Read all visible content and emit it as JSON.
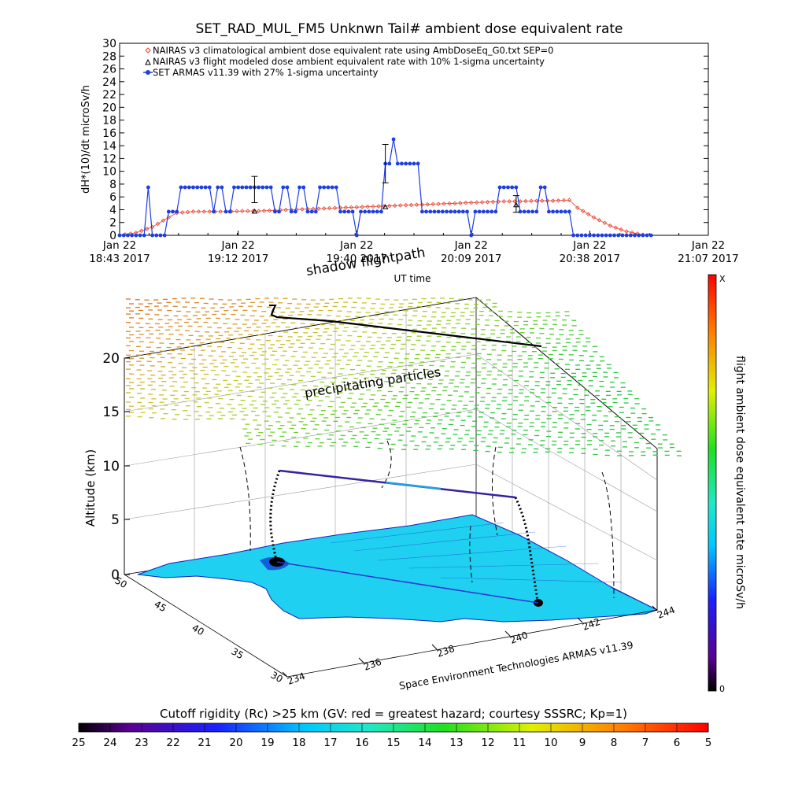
{
  "chart_data": [
    {
      "type": "line",
      "title": "SET_RAD_MUL_FM5 Unknwn Tail#  ambient dose equivalent rate",
      "xlabel": "UT time",
      "ylabel": "dH*(10)/dt microSv/h",
      "ylim": [
        0,
        30
      ],
      "yticks": [
        "0",
        "2",
        "4",
        "6",
        "8",
        "10",
        "12",
        "14",
        "16",
        "18",
        "20",
        "22",
        "24",
        "26",
        "28",
        "30"
      ],
      "xticks": [
        {
          "t": 0,
          "line1": "Jan 22",
          "line2": "18:43 2017"
        },
        {
          "t": 29,
          "line1": "Jan 22",
          "line2": "19:12 2017"
        },
        {
          "t": 58,
          "line1": "Jan 22",
          "line2": "19:40 2017"
        },
        {
          "t": 86,
          "line1": "Jan 22",
          "line2": "20:09 2017"
        },
        {
          "t": 115,
          "line1": "Jan 22",
          "line2": "20:38 2017"
        },
        {
          "t": 144,
          "line1": "Jan 22",
          "line2": "21:07 2017"
        }
      ],
      "x_unit": "minutes after 18:43 UT",
      "legend": [
        {
          "label": "NAIRAS v3 climatological ambient dose equivalent rate using AmbDoseEq_G0.txt SEP=0",
          "symbol": "diamond",
          "color": "#e8422f"
        },
        {
          "label": "NAIRAS v3 flight modeled dose ambient equivalent rate with 10% 1-sigma uncertainty",
          "symbol": "triangle",
          "color": "#000000"
        },
        {
          "label": "SET ARMAS v11.39 with 27% 1-sigma uncertainty",
          "symbol": "dot",
          "color": "#1f3fe0"
        }
      ],
      "legend_position": "top",
      "series": [
        {
          "name": "SET ARMAS v11.39 with 27% 1-sigma uncertainty",
          "color": "#1f3fe0",
          "x": [
            0,
            1,
            2,
            3,
            4,
            5,
            6,
            7,
            8,
            9,
            10,
            11,
            12,
            13,
            14,
            15,
            16,
            17,
            18,
            19,
            20,
            21,
            22,
            23,
            24,
            25,
            26,
            27,
            28,
            29,
            30,
            31,
            32,
            33,
            34,
            35,
            36,
            37,
            38,
            39,
            40,
            41,
            42,
            43,
            44,
            45,
            46,
            47,
            48,
            49,
            50,
            51,
            52,
            53,
            54,
            55,
            56,
            57,
            58,
            59,
            60,
            61,
            62,
            63,
            64,
            65,
            66,
            67,
            68,
            69,
            70,
            71,
            72,
            73,
            74,
            75,
            76,
            77,
            78,
            79,
            80,
            81,
            82,
            83,
            84,
            85,
            86,
            87,
            88,
            89,
            90,
            91,
            92,
            93,
            94,
            95,
            96,
            97,
            98,
            99,
            100,
            101,
            102,
            103,
            104,
            105,
            106,
            107,
            108,
            109,
            110,
            111,
            112,
            113,
            114,
            115,
            116,
            117,
            118,
            119,
            120,
            121,
            122,
            123,
            124,
            125,
            126,
            127,
            128,
            129,
            130
          ],
          "y": [
            0,
            0,
            0,
            0,
            0,
            0,
            0,
            7.5,
            0,
            0,
            0,
            0,
            3.7,
            3.7,
            3.7,
            7.5,
            7.5,
            7.5,
            7.5,
            7.5,
            7.5,
            7.5,
            7.5,
            3.7,
            7.5,
            7.5,
            3.7,
            3.7,
            7.5,
            7.5,
            7.5,
            7.5,
            7.5,
            7.5,
            7.5,
            7.5,
            7.5,
            7.5,
            3.7,
            3.7,
            7.5,
            7.5,
            3.7,
            3.7,
            7.5,
            7.5,
            3.7,
            3.7,
            3.7,
            7.5,
            7.5,
            7.5,
            7.5,
            7.5,
            3.7,
            3.7,
            3.7,
            3.7,
            0,
            3.7,
            3.7,
            3.7,
            3.7,
            3.7,
            3.7,
            11.2,
            11.2,
            15,
            11.2,
            11.2,
            11.2,
            11.2,
            11.2,
            11.2,
            3.7,
            3.7,
            3.7,
            3.7,
            3.7,
            3.7,
            3.7,
            3.7,
            3.7,
            3.7,
            3.7,
            3.7,
            0,
            3.7,
            3.7,
            3.7,
            3.7,
            3.7,
            3.7,
            7.5,
            7.5,
            7.5,
            7.5,
            7.5,
            3.7,
            3.7,
            3.7,
            3.7,
            3.7,
            7.5,
            7.5,
            3.7,
            3.7,
            3.7,
            3.7,
            3.7,
            3.7,
            0,
            0,
            0,
            0,
            0,
            0,
            0,
            0,
            0,
            0,
            0,
            0,
            0,
            0,
            0,
            0,
            0,
            0,
            0,
            0
          ]
        },
        {
          "name": "NAIRAS v3 climatological ambient dose equivalent rate using AmbDoseEq_G0.txt SEP=0",
          "color": "#e8422f",
          "x": [
            0,
            4,
            8,
            12,
            14,
            18,
            22,
            26,
            30,
            34,
            38,
            42,
            46,
            50,
            54,
            58,
            62,
            66,
            70,
            74,
            78,
            82,
            86,
            90,
            94,
            98,
            102,
            106,
            110,
            112,
            116,
            120,
            124,
            128,
            130
          ],
          "y": [
            0,
            0.4,
            1.3,
            2.8,
            3.5,
            3.7,
            3.7,
            3.7,
            3.8,
            3.8,
            3.9,
            4,
            4.1,
            4.2,
            4.3,
            4.4,
            4.5,
            4.6,
            4.7,
            4.8,
            4.9,
            5,
            5.1,
            5.2,
            5.3,
            5.3,
            5.4,
            5.4,
            5.5,
            4.3,
            2.8,
            1.5,
            0.6,
            0.1,
            0
          ]
        }
      ],
      "error_bars": [
        {
          "x": 33,
          "y": 7,
          "low": 5.1,
          "high": 9.2
        },
        {
          "x": 65,
          "y": 11.2,
          "low": 8.2,
          "high": 14.2
        },
        {
          "x": 97,
          "y": 5,
          "low": 3.6,
          "high": 6.2
        }
      ],
      "flight_model_points": [
        {
          "x": 33,
          "y": 3.7
        },
        {
          "x": 65,
          "y": 4.4
        },
        {
          "x": 97,
          "y": 4.7
        }
      ]
    },
    {
      "type": "scatter",
      "subtype": "3d-flight-track",
      "zlabel": "Altitude (km)",
      "zticks": [
        "0",
        "5",
        "10",
        "15",
        "20"
      ],
      "latitude_ticks": [
        "30",
        "35",
        "40",
        "45",
        "50"
      ],
      "longitude_ticks": [
        "234",
        "236",
        "238",
        "240",
        "242",
        "244"
      ],
      "annotations": [
        "shadow flightpath",
        "precipitating particles"
      ],
      "credit": "Space Environment Technologies ARMAS v11.39",
      "colorbar_vertical": {
        "label": "flight ambient dose equivalent rate microSv/h",
        "top": "X",
        "bottom": "0"
      },
      "colorbar_horizontal": {
        "label": "Cutoff rigidity (Rc) >25 km (GV: red = greatest hazard; courtesy SSSRC; Kp=1)",
        "ticks": [
          "25",
          "24",
          "23",
          "22",
          "21",
          "20",
          "19",
          "18",
          "17",
          "16",
          "15",
          "14",
          "13",
          "12",
          "11",
          "10",
          "9",
          "8",
          "7",
          "6",
          "5"
        ]
      }
    }
  ]
}
